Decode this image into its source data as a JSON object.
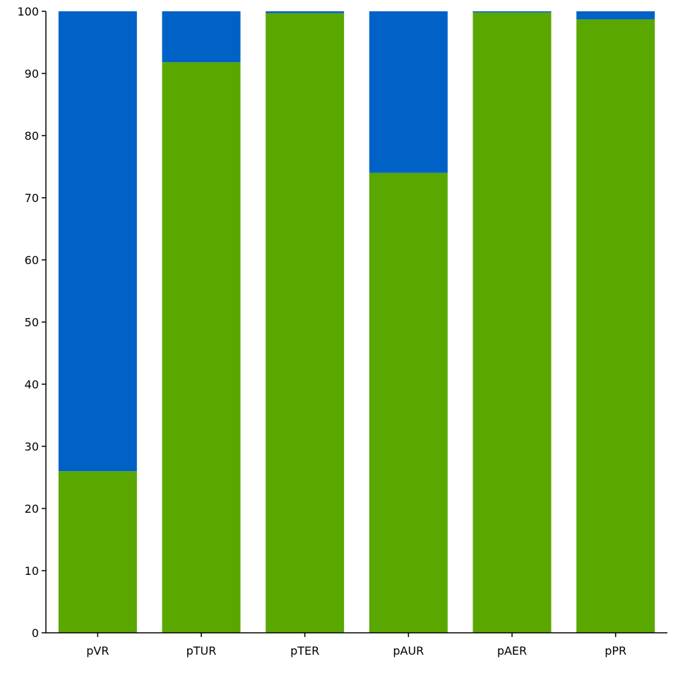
{
  "chart_data": {
    "type": "bar",
    "stacked": true,
    "title": "",
    "xlabel": "",
    "ylabel": "",
    "categories": [
      "pVR",
      "pTUR",
      "pTER",
      "pAUR",
      "pAER",
      "pPR"
    ],
    "series": [
      {
        "color": "#5aa700",
        "values": [
          26.0,
          91.8,
          99.7,
          74.0,
          99.8,
          98.7
        ]
      },
      {
        "color": "#0062c6",
        "values": [
          74.0,
          8.2,
          0.3,
          26.0,
          0.2,
          1.3
        ]
      }
    ],
    "ylim": [
      0,
      100
    ],
    "yticks": [
      0,
      10,
      20,
      30,
      40,
      50,
      60,
      70,
      80,
      90,
      100
    ],
    "grid": false,
    "legend": "none"
  }
}
